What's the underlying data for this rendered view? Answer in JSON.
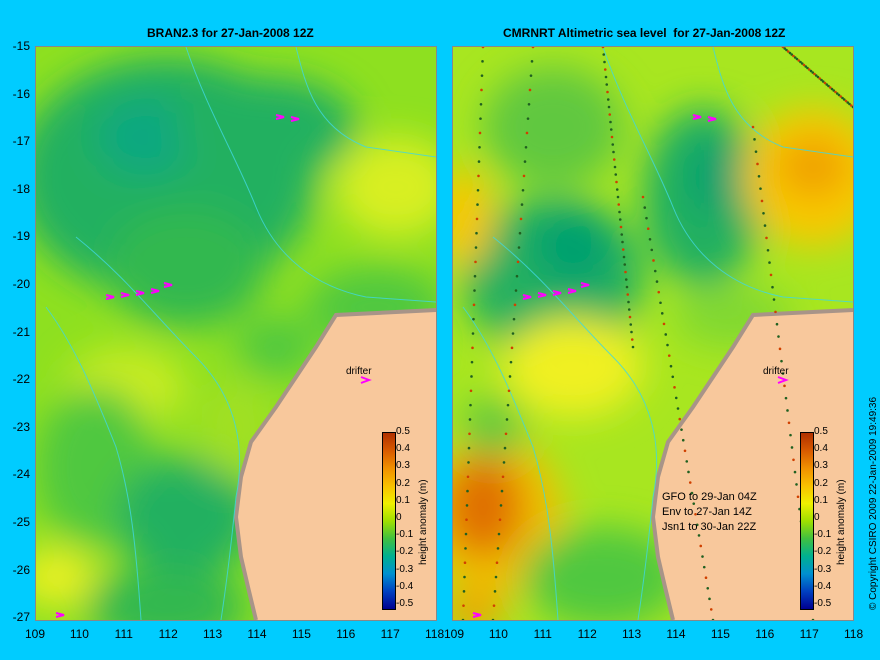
{
  "map_left": {
    "title": "BRAN2.3 for 27-Jan-2008 12Z",
    "drifter_label": "drifter"
  },
  "map_right": {
    "title": "CMRNRT Altimetric sea level  for 27-Jan-2008 12Z",
    "drifter_label": "drifter",
    "satellite_notes": [
      "GFO to 29-Jan 04Z",
      "Env to 27-Jan 14Z",
      "Jsn1 to 30-Jan 22Z"
    ]
  },
  "axes": {
    "y_ticks": [
      "-15",
      "-16",
      "-17",
      "-18",
      "-19",
      "-20",
      "-21",
      "-22",
      "-23",
      "-24",
      "-25",
      "-26",
      "-27"
    ],
    "x_ticks_left": [
      "109",
      "110",
      "111",
      "112",
      "113",
      "114",
      "115",
      "116",
      "117",
      "118"
    ],
    "x_ticks_right": [
      "109",
      "110",
      "111",
      "112",
      "113",
      "114",
      "115",
      "116",
      "117",
      "118"
    ]
  },
  "colorbar": {
    "title": "height anomaly (m)",
    "ticks": [
      "0.5",
      "0.4",
      "0.3",
      "0.2",
      "0.1",
      "0",
      "-0.1",
      "-0.2",
      "-0.3",
      "-0.4",
      "-0.5"
    ],
    "colors": [
      "#b03000",
      "#d85a00",
      "#f09000",
      "#f8c000",
      "#f0f000",
      "#a0e000",
      "#40c040",
      "#00b090",
      "#0090d0",
      "#0040c0",
      "#000090"
    ]
  },
  "copyright": "© Copyright CSIRO 2009    22-Jan-2009 19:49:36",
  "colors": {
    "background": "#00ccff",
    "land": "#f8c89c",
    "coast": "#a89488",
    "drifter_arrow": "#ff00ff"
  }
}
